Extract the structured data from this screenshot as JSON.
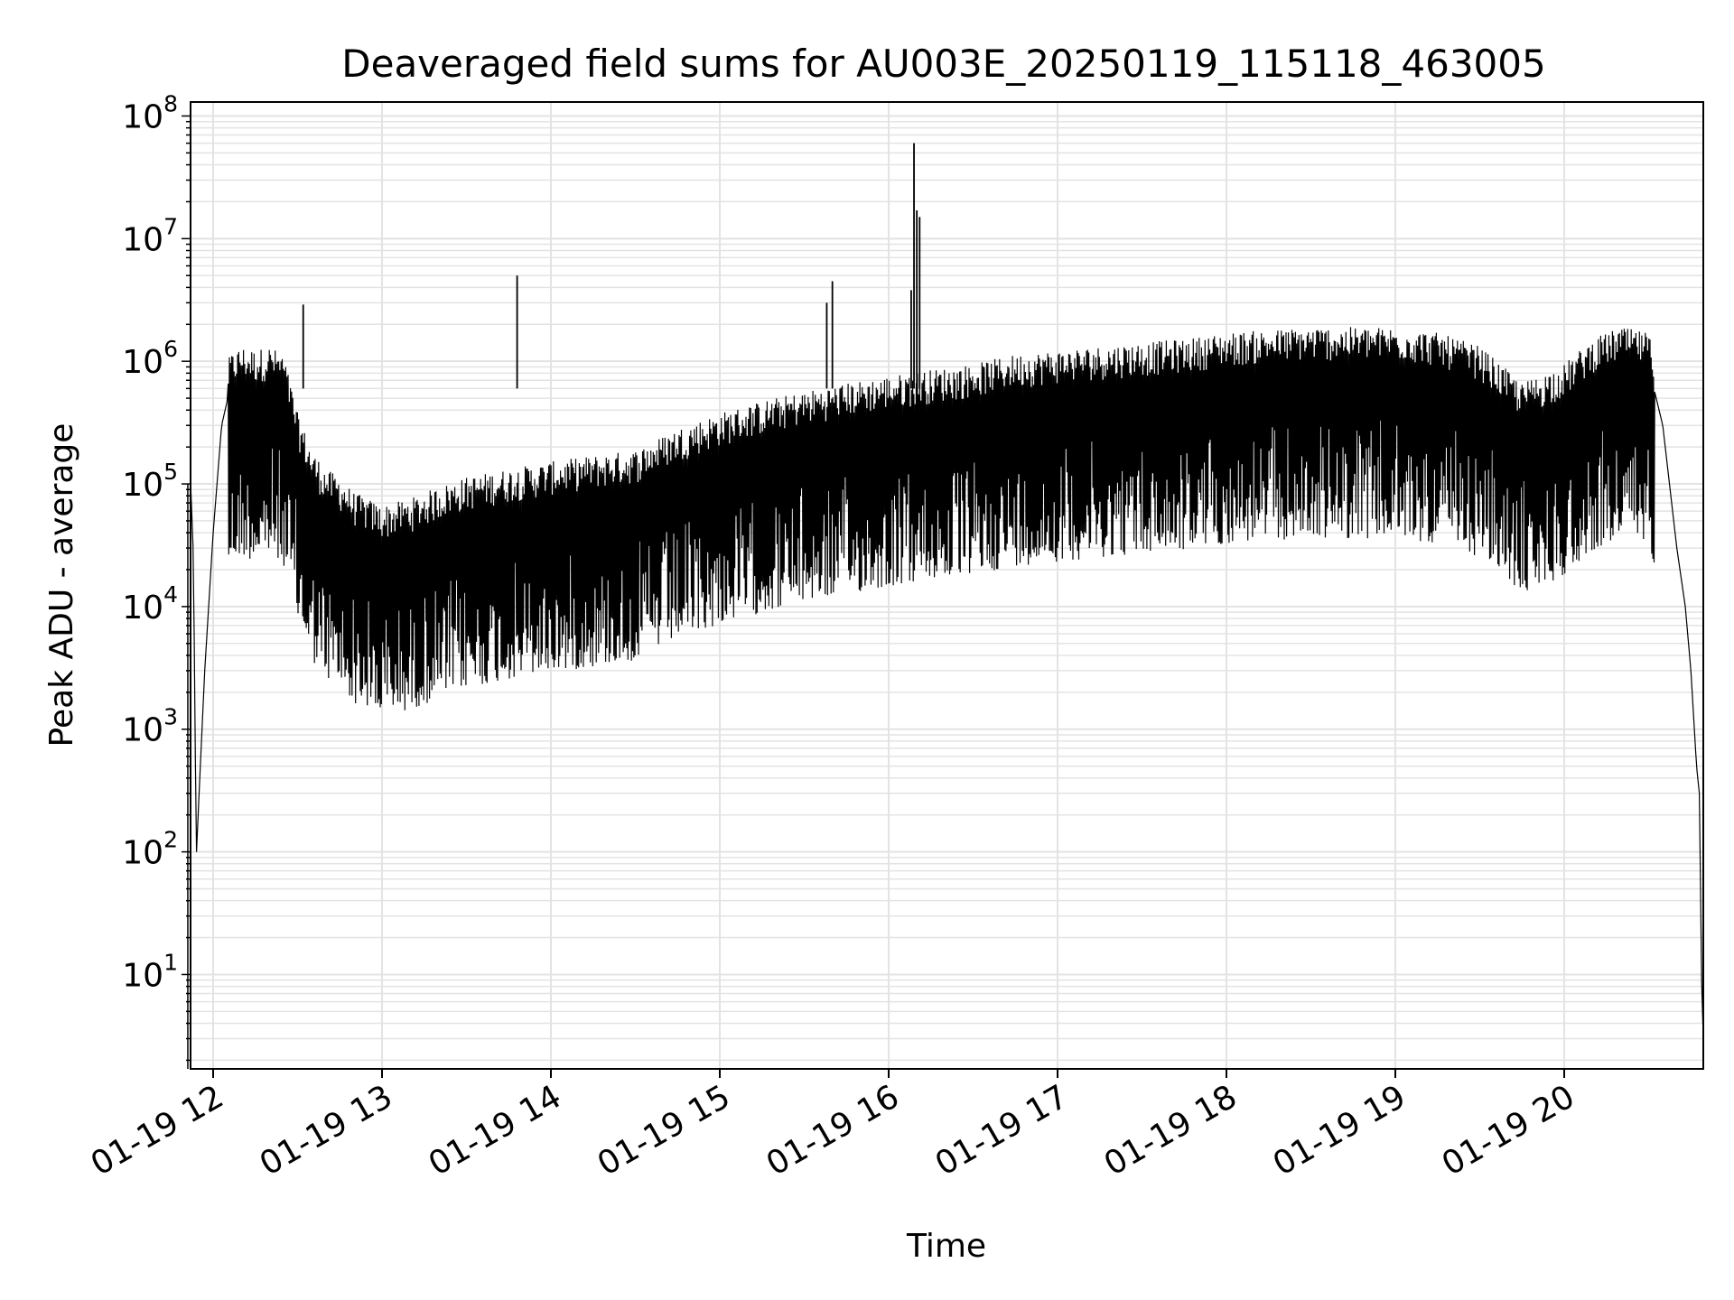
{
  "chart_data": {
    "type": "line",
    "title": "Deaveraged field sums for AU003E_20250119_115118_463005",
    "xlabel": "Time",
    "ylabel": "Peak ADU - average",
    "yscale": "log",
    "ylim": [
      1.7,
      130000000
    ],
    "xlim": [
      "01-19 11:51",
      "01-19 20:50"
    ],
    "grid": true,
    "line_color": "#000000",
    "grid_color": "#e3e3e3",
    "x_ticks": [
      "01-19 12",
      "01-19 13",
      "01-19 14",
      "01-19 15",
      "01-19 16",
      "01-19 17",
      "01-19 18",
      "01-19 19",
      "01-19 20"
    ],
    "y_ticks": [
      {
        "base": "10",
        "exp": "1"
      },
      {
        "base": "10",
        "exp": "2"
      },
      {
        "base": "10",
        "exp": "3"
      },
      {
        "base": "10",
        "exp": "4"
      },
      {
        "base": "10",
        "exp": "5"
      },
      {
        "base": "10",
        "exp": "6"
      },
      {
        "base": "10",
        "exp": "7"
      },
      {
        "base": "10",
        "exp": "8"
      }
    ],
    "series": [
      {
        "x": [
          "01-19 11:52",
          "01-19 11:53",
          "01-19 11:54",
          "01-19 11:55",
          "01-19 11:57",
          "01-19 12:00",
          "01-19 12:03",
          "01-19 12:06",
          "01-19 12:10",
          "01-19 12:15",
          "01-19 12:20",
          "01-19 12:25",
          "01-19 12:30",
          "01-19 12:35",
          "01-19 12:40",
          "01-19 12:45",
          "01-19 12:50",
          "01-19 12:55",
          "01-19 13:00",
          "01-19 13:10",
          "01-19 13:20",
          "01-19 13:30",
          "01-19 13:45",
          "01-19 14:00",
          "01-19 14:15",
          "01-19 14:30",
          "01-19 14:45",
          "01-19 15:00",
          "01-19 15:15",
          "01-19 15:30",
          "01-19 15:45",
          "01-19 16:00",
          "01-19 16:15",
          "01-19 16:30",
          "01-19 16:45",
          "01-19 17:00",
          "01-19 17:15",
          "01-19 17:30",
          "01-19 17:45",
          "01-19 18:00",
          "01-19 18:15",
          "01-19 18:30",
          "01-19 18:45",
          "01-19 19:00",
          "01-19 19:15",
          "01-19 19:30",
          "01-19 19:45",
          "01-19 20:00",
          "01-19 20:10",
          "01-19 20:20",
          "01-19 20:30",
          "01-19 20:35",
          "01-19 20:40",
          "01-19 20:43",
          "01-19 20:45",
          "01-19 20:47",
          "01-19 20:48",
          "01-19 20:49",
          "01-19 20:50"
        ],
        "values": [
          100000,
          25000,
          90,
          300,
          3000,
          40000,
          300000,
          600000,
          700000,
          650000,
          700000,
          600000,
          200000,
          100000,
          70000,
          60000,
          45000,
          40000,
          35000,
          40000,
          50000,
          60000,
          70000,
          80000,
          90000,
          100000,
          150000,
          200000,
          250000,
          300000,
          350000,
          400000,
          450000,
          500000,
          600000,
          650000,
          700000,
          750000,
          800000,
          900000,
          950000,
          1000000,
          1000000,
          1000000,
          900000,
          700000,
          350000,
          500000,
          800000,
          1000000,
          900000,
          300000,
          30000,
          10000,
          3000,
          500,
          300,
          4,
          4
        ]
      }
    ],
    "peaks": [
      {
        "x": "01-19 12:32",
        "value": 2900000
      },
      {
        "x": "01-19 13:48",
        "value": 5000000
      },
      {
        "x": "01-19 15:38",
        "value": 3000000
      },
      {
        "x": "01-19 15:40",
        "value": 4500000
      },
      {
        "x": "01-19 16:08",
        "value": 3800000
      },
      {
        "x": "01-19 16:09",
        "value": 60000000
      },
      {
        "x": "01-19 16:10",
        "value": 17000000
      },
      {
        "x": "01-19 16:11",
        "value": 15000000
      }
    ]
  }
}
